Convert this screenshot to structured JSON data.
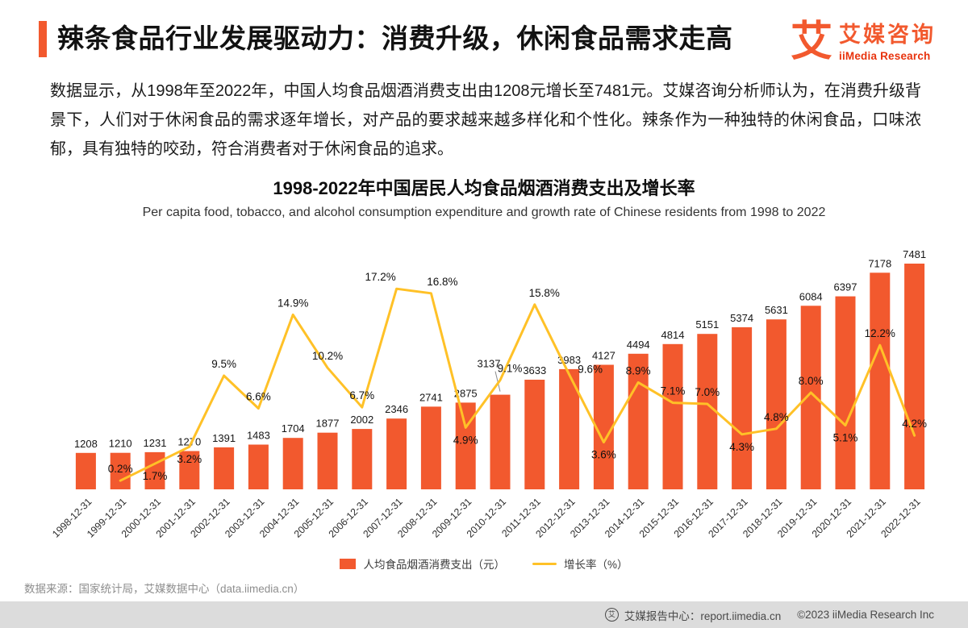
{
  "header": {
    "title": "辣条食品行业发展驱动力：消费升级，休闲食品需求走高",
    "logo": {
      "mark": "艾",
      "name_cn": "艾媒咨询",
      "name_en": "iiMedia Research"
    }
  },
  "intro": {
    "text": "数据显示，从1998年至2022年，中国人均食品烟酒消费支出由1208元增长至7481元。艾媒咨询分析师认为，在消费升级背景下，人们对于休闲食品的需求逐年增长，对产品的要求越来越多样化和个性化。辣条作为一种独特的休闲食品，口味浓郁，具有独特的咬劲，符合消费者对于休闲食品的追求。"
  },
  "chart_data": {
    "type": "bar+line",
    "title": "1998-2022年中国居民人均食品烟酒消费支出及增长率",
    "subtitle": "Per capita food, tobacco, and alcohol consumption expenditure and growth rate of Chinese residents from 1998 to 2022",
    "categories": [
      "1998-12-31",
      "1999-12-31",
      "2000-12-31",
      "2001-12-31",
      "2002-12-31",
      "2003-12-31",
      "2004-12-31",
      "2005-12-31",
      "2006-12-31",
      "2007-12-31",
      "2008-12-31",
      "2009-12-31",
      "2010-12-31",
      "2011-12-31",
      "2012-12-31",
      "2013-12-31",
      "2014-12-31",
      "2015-12-31",
      "2016-12-31",
      "2017-12-31",
      "2018-12-31",
      "2019-12-31",
      "2020-12-31",
      "2021-12-31",
      "2022-12-31"
    ],
    "series": [
      {
        "name": "人均食品烟酒消费支出（元）",
        "type": "bar",
        "color": "#F2592E",
        "unit": "元",
        "values": [
          1208,
          1210,
          1231,
          1270,
          1391,
          1483,
          1704,
          1877,
          2002,
          2346,
          2741,
          2875,
          3137,
          3633,
          3983,
          4127,
          4494,
          4814,
          5151,
          5374,
          5631,
          6084,
          6397,
          7178,
          7481
        ]
      },
      {
        "name": "增长率（%）",
        "type": "line",
        "color": "#FFC127",
        "unit": "%",
        "values": [
          null,
          0.2,
          1.7,
          3.2,
          9.5,
          6.6,
          14.9,
          10.2,
          6.7,
          17.2,
          16.8,
          4.9,
          9.1,
          15.8,
          9.6,
          3.6,
          8.9,
          7.1,
          7.0,
          4.3,
          4.8,
          8.0,
          5.1,
          12.2,
          4.2
        ]
      }
    ],
    "ylim_bar": [
      0,
      7481
    ],
    "ylim_line_pct": [
      0,
      17.2
    ],
    "legend_position": "bottom",
    "grid": false
  },
  "icons": {
    "footer_badge": "艾"
  },
  "source_note": "数据来源：国家统计局，艾媒数据中心（data.iimedia.cn）",
  "footer": {
    "report_center": "艾媒报告中心：report.iimedia.cn",
    "copyright": "©2023  iiMedia Research Inc"
  },
  "colors": {
    "accent": "#F2592E",
    "bar": "#F2592E",
    "line": "#FFC127",
    "footer_bg": "#DCDCDC"
  }
}
